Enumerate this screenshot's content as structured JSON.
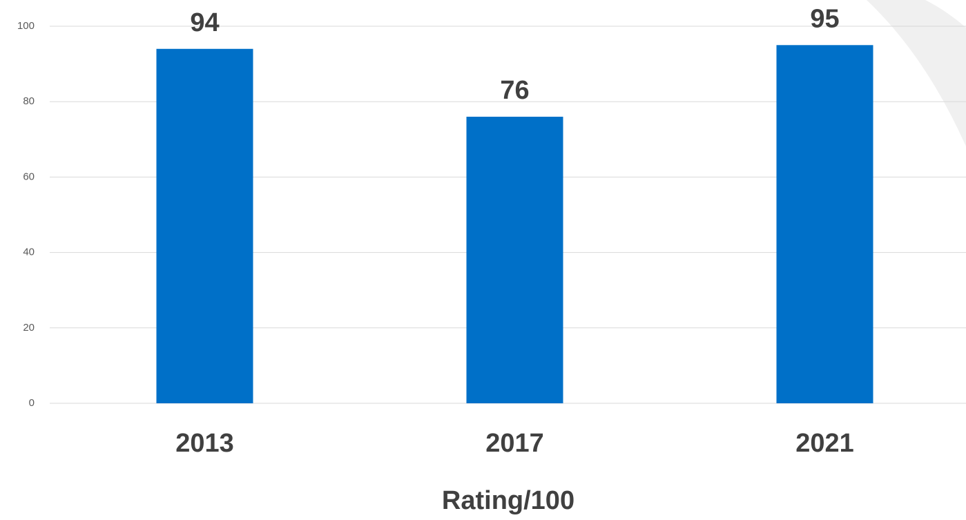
{
  "chart_data": {
    "type": "bar",
    "x_label": "Rating/100",
    "categories": [
      "2013",
      "2017",
      "2021"
    ],
    "values": [
      94,
      76,
      95
    ],
    "color": "#0070c8",
    "ylim": [
      0,
      100
    ],
    "yticks": [
      0,
      20,
      40,
      60,
      80,
      100
    ],
    "grid": true,
    "data_labels": true
  }
}
